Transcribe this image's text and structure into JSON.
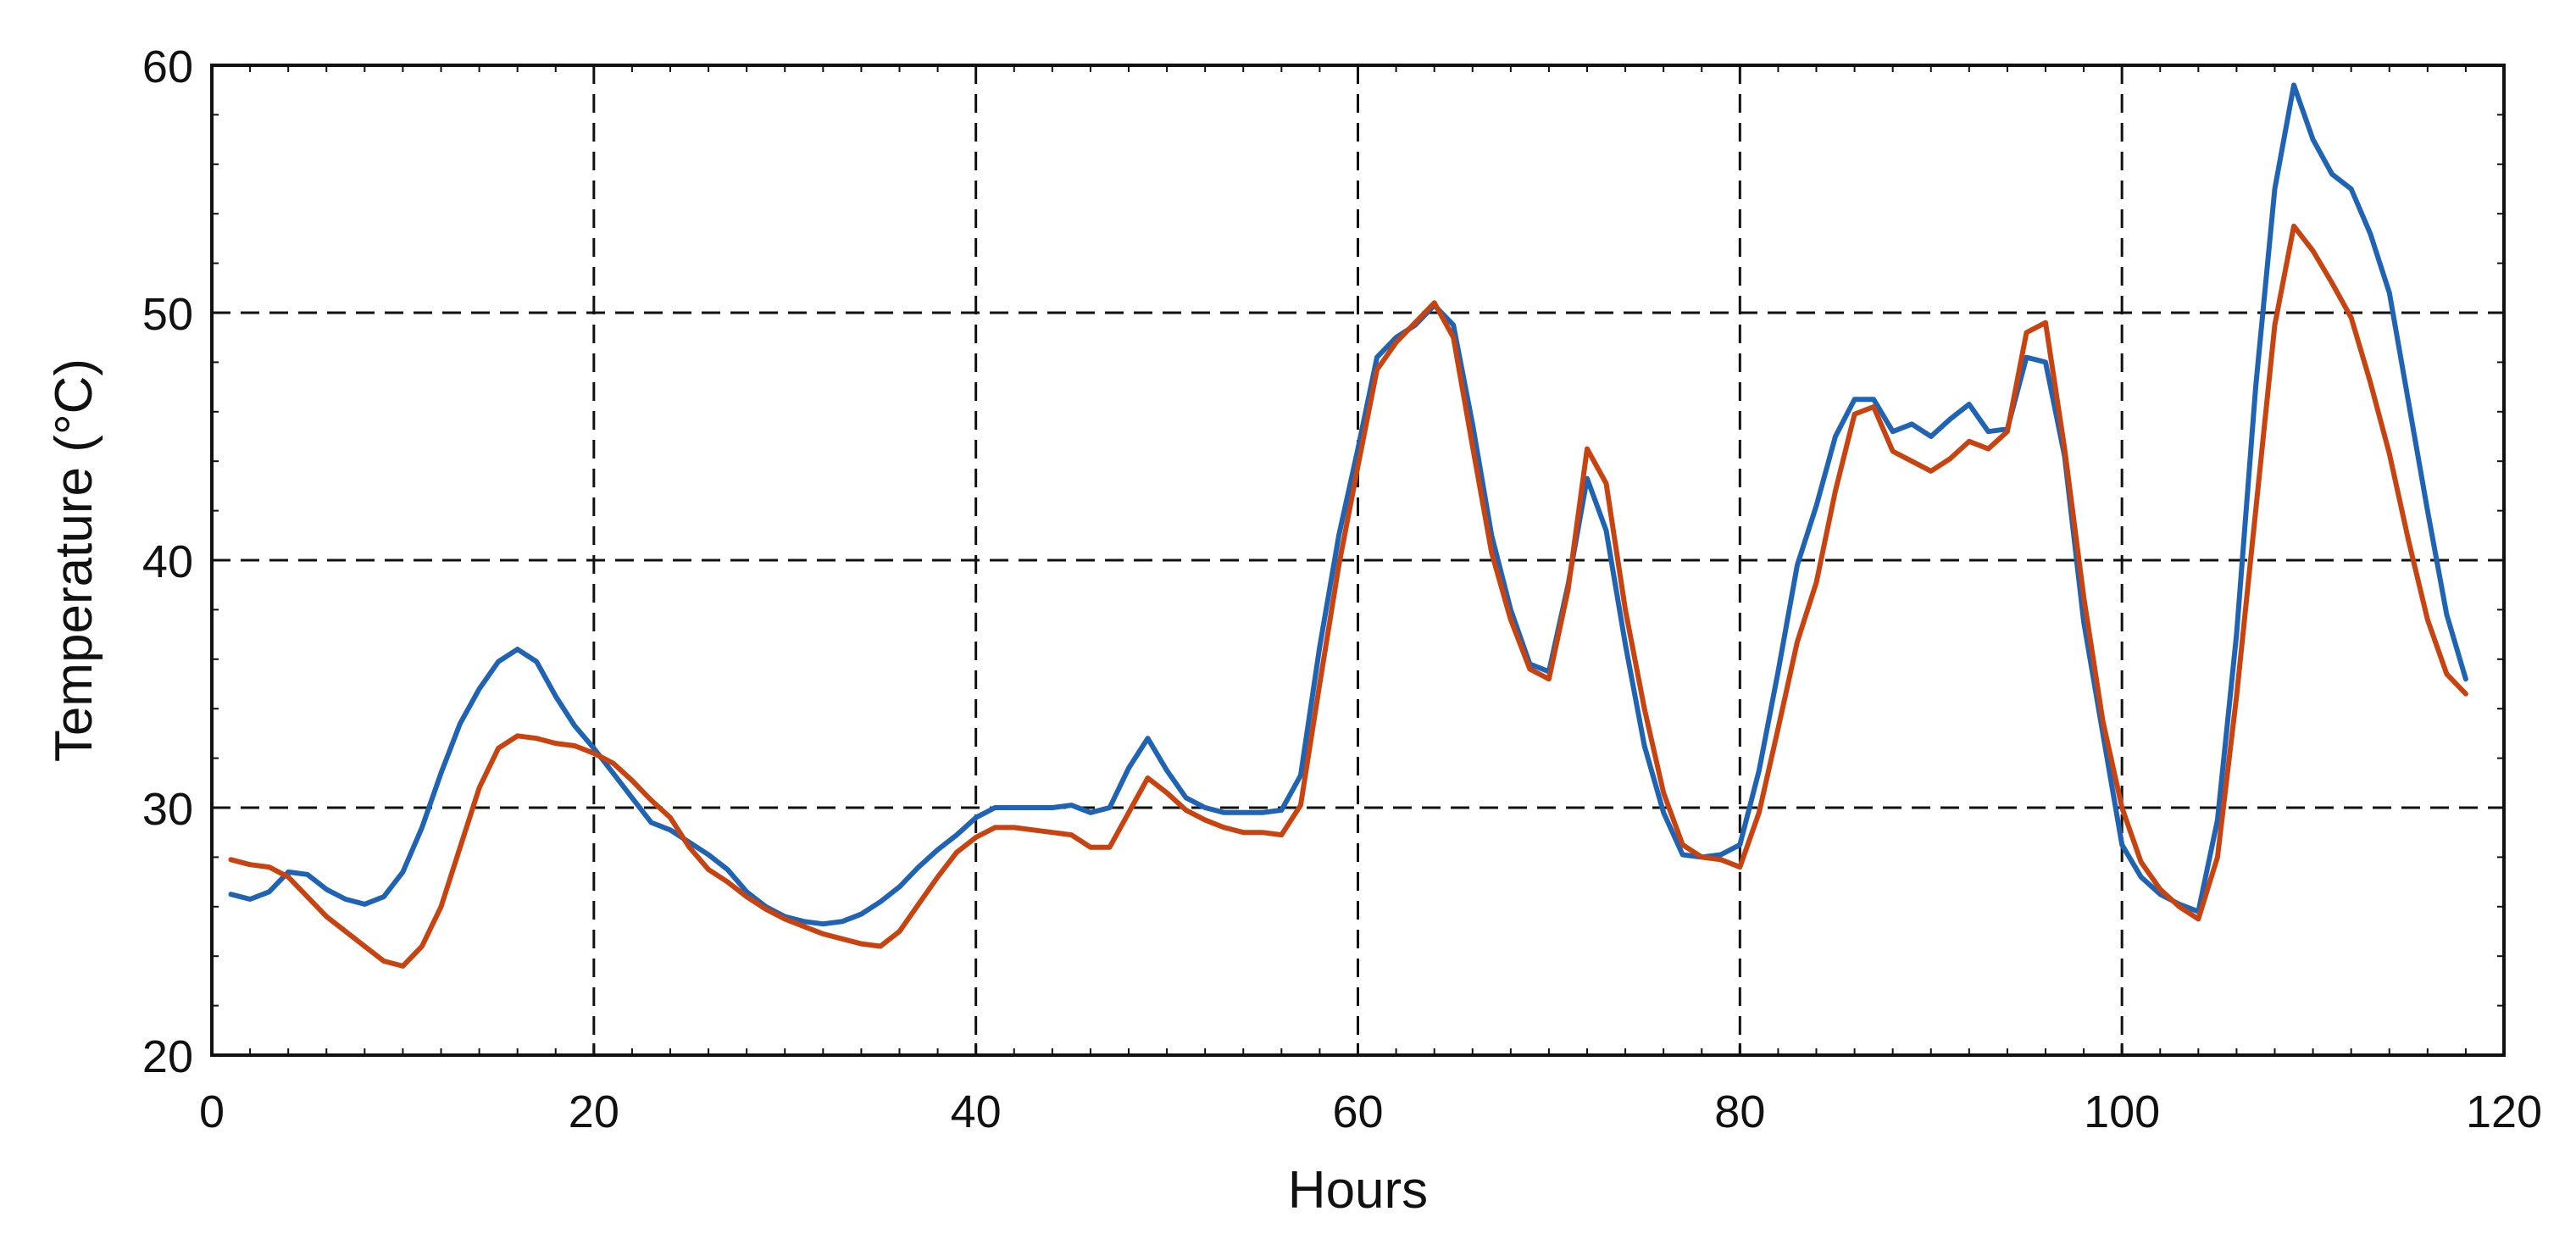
{
  "chart_data": {
    "type": "line",
    "xlabel": "Hours",
    "ylabel": "Temperature (°C)",
    "xlim": [
      0,
      120
    ],
    "ylim": [
      20,
      60
    ],
    "x_ticks": [
      "0",
      "20",
      "40",
      "60",
      "80",
      "100",
      "120"
    ],
    "y_ticks": [
      "20",
      "30",
      "40",
      "50",
      "60"
    ],
    "grid": true,
    "legend": "none",
    "series": [
      {
        "color": "#1f63b4",
        "x": [
          1,
          2,
          3,
          4,
          5,
          6,
          7,
          8,
          9,
          10,
          11,
          12,
          13,
          14,
          15,
          16,
          17,
          18,
          19,
          20,
          21,
          22,
          23,
          24,
          25,
          26,
          27,
          28,
          29,
          30,
          31,
          32,
          33,
          34,
          35,
          36,
          37,
          38,
          39,
          40,
          41,
          42,
          43,
          44,
          45,
          46,
          47,
          48,
          49,
          50,
          51,
          52,
          53,
          54,
          55,
          56,
          57,
          58,
          59,
          60,
          61,
          62,
          63,
          64,
          65,
          66,
          67,
          68,
          69,
          70,
          71,
          72,
          73,
          74,
          75,
          76,
          77,
          78,
          79,
          80,
          81,
          82,
          83,
          84,
          85,
          86,
          87,
          88,
          89,
          90,
          91,
          92,
          93,
          94,
          95,
          96,
          97,
          98,
          99,
          100,
          101,
          102,
          103,
          104,
          105,
          106,
          107,
          108,
          109,
          110,
          111,
          112,
          113,
          114,
          115,
          116,
          117,
          118
        ],
        "values": [
          26.5,
          26.3,
          26.6,
          27.4,
          27.3,
          26.7,
          26.3,
          26.1,
          26.4,
          27.4,
          29.2,
          31.4,
          33.4,
          34.8,
          35.9,
          36.4,
          35.9,
          34.5,
          33.3,
          32.4,
          31.4,
          30.4,
          29.4,
          29.1,
          28.6,
          28.1,
          27.5,
          26.6,
          26.0,
          25.6,
          25.4,
          25.3,
          25.4,
          25.7,
          26.2,
          26.8,
          27.6,
          28.3,
          28.9,
          29.6,
          30.0,
          30.0,
          30.0,
          30.0,
          30.1,
          29.8,
          30.0,
          31.6,
          32.8,
          31.5,
          30.4,
          30.0,
          29.8,
          29.8,
          29.8,
          29.9,
          31.3,
          36.5,
          41.0,
          44.5,
          48.2,
          49.0,
          49.5,
          50.3,
          49.5,
          45.5,
          41.0,
          38.0,
          35.8,
          35.5,
          39.0,
          43.3,
          41.2,
          36.6,
          32.5,
          29.8,
          28.1,
          28.0,
          28.1,
          28.5,
          31.5,
          35.5,
          39.8,
          42.2,
          45.0,
          46.5,
          46.5,
          45.2,
          45.5,
          45.0,
          45.7,
          46.3,
          45.2,
          45.3,
          48.2,
          48.0,
          44.2,
          37.5,
          33.0,
          28.5,
          27.2,
          26.5,
          26.1,
          25.8,
          29.5,
          37.0,
          47.0,
          55.0,
          59.2,
          57.0,
          55.6,
          55.0,
          53.2,
          50.8,
          46.4,
          42.0,
          37.8,
          35.2
        ]
      },
      {
        "color": "#c8430f",
        "x": [
          1,
          2,
          3,
          4,
          5,
          6,
          7,
          8,
          9,
          10,
          11,
          12,
          13,
          14,
          15,
          16,
          17,
          18,
          19,
          20,
          21,
          22,
          23,
          24,
          25,
          26,
          27,
          28,
          29,
          30,
          31,
          32,
          33,
          34,
          35,
          36,
          37,
          38,
          39,
          40,
          41,
          42,
          43,
          44,
          45,
          46,
          47,
          48,
          49,
          50,
          51,
          52,
          53,
          54,
          55,
          56,
          57,
          58,
          59,
          60,
          61,
          62,
          63,
          64,
          65,
          66,
          67,
          68,
          69,
          70,
          71,
          72,
          73,
          74,
          75,
          76,
          77,
          78,
          79,
          80,
          81,
          82,
          83,
          84,
          85,
          86,
          87,
          88,
          89,
          90,
          91,
          92,
          93,
          94,
          95,
          96,
          97,
          98,
          99,
          100,
          101,
          102,
          103,
          104,
          105,
          106,
          107,
          108,
          109,
          110,
          111,
          112,
          113,
          114,
          115,
          116,
          117,
          118
        ],
        "values": [
          27.9,
          27.7,
          27.6,
          27.2,
          26.4,
          25.6,
          25.0,
          24.4,
          23.8,
          23.6,
          24.4,
          26.0,
          28.4,
          30.8,
          32.4,
          32.9,
          32.8,
          32.6,
          32.5,
          32.2,
          31.8,
          31.1,
          30.3,
          29.6,
          28.4,
          27.5,
          27.0,
          26.4,
          25.9,
          25.5,
          25.2,
          24.9,
          24.7,
          24.5,
          24.4,
          25.0,
          26.1,
          27.2,
          28.2,
          28.8,
          29.2,
          29.2,
          29.1,
          29.0,
          28.9,
          28.4,
          28.4,
          29.8,
          31.2,
          30.6,
          29.9,
          29.5,
          29.2,
          29.0,
          29.0,
          28.9,
          30.1,
          35.0,
          39.8,
          43.8,
          47.7,
          48.8,
          49.6,
          50.4,
          49.0,
          44.6,
          40.3,
          37.6,
          35.6,
          35.2,
          38.8,
          44.5,
          43.1,
          38.0,
          34.0,
          30.6,
          28.5,
          28.0,
          27.9,
          27.6,
          29.8,
          33.2,
          36.7,
          39.1,
          42.8,
          45.9,
          46.2,
          44.4,
          44.0,
          43.6,
          44.1,
          44.8,
          44.5,
          45.2,
          49.2,
          49.6,
          44.5,
          38.5,
          33.5,
          30.0,
          27.8,
          26.7,
          26.0,
          25.5,
          28.0,
          34.5,
          42.0,
          49.5,
          53.5,
          52.5,
          51.2,
          49.8,
          47.2,
          44.3,
          40.8,
          37.6,
          35.4,
          34.6
        ]
      }
    ]
  }
}
